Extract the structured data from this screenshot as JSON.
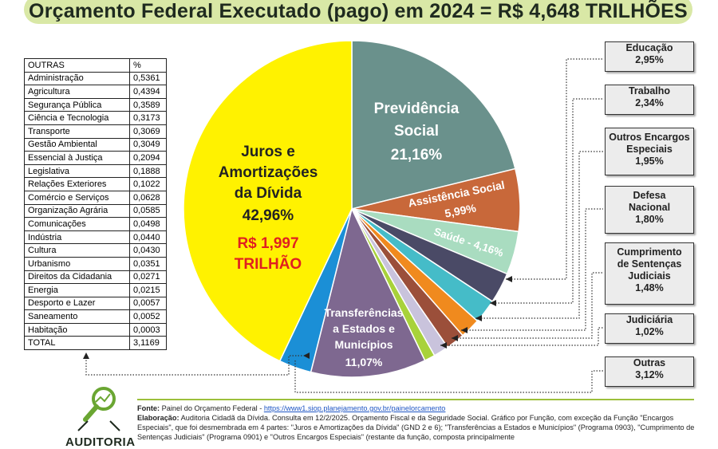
{
  "title": "Orçamento Federal Executado (pago) em 2024 = R$ 4,648 TRILHÕES",
  "table": {
    "header_name": "OUTRAS",
    "header_value": "%",
    "rows": [
      {
        "name": "Administração",
        "value": "0,5361"
      },
      {
        "name": "Agricultura",
        "value": "0,4394"
      },
      {
        "name": "Segurança Pública",
        "value": "0,3589"
      },
      {
        "name": "Ciência e Tecnologia",
        "value": "0,3173"
      },
      {
        "name": "Transporte",
        "value": "0,3069"
      },
      {
        "name": "Gestão Ambiental",
        "value": "0,3049"
      },
      {
        "name": "Essencial à Justiça",
        "value": "0,2094"
      },
      {
        "name": "Legislativa",
        "value": "0,1888"
      },
      {
        "name": "Relações Exteriores",
        "value": "0,1022"
      },
      {
        "name": "Comércio e Serviços",
        "value": "0,0628"
      },
      {
        "name": "Organização Agrária",
        "value": "0,0585"
      },
      {
        "name": "Comunicações",
        "value": "0,0498"
      },
      {
        "name": "Indústria",
        "value": "0,0440"
      },
      {
        "name": "Cultura",
        "value": "0,0430"
      },
      {
        "name": "Urbanismo",
        "value": "0,0351"
      },
      {
        "name": "Direitos da Cidadania",
        "value": "0,0271"
      },
      {
        "name": "Energia",
        "value": "0,0215"
      },
      {
        "name": "Desporto e Lazer",
        "value": "0,0057"
      },
      {
        "name": "Saneamento",
        "value": "0,0052"
      },
      {
        "name": "Habitação",
        "value": "0,0003"
      }
    ],
    "total_name": "TOTAL",
    "total_value": "3,1169"
  },
  "labels": {
    "juros_1": "Juros e",
    "juros_2": "Amortizações",
    "juros_3": "da Dívida",
    "juros_pct": "42,96%",
    "juros_value_1": "R$ 1,997",
    "juros_value_2": "TRILHÃO",
    "prev_1": "Previdência",
    "prev_2": "Social",
    "prev_pct": "21,16%",
    "assist_1": "Assistência Social",
    "assist_pct": "5,99%",
    "saude": "Saúde - 4,16%",
    "transf_1": "Transferências",
    "transf_2": "a Estados e",
    "transf_3": "Municípios",
    "transf_pct": "11,07%"
  },
  "callouts": {
    "educacao": {
      "name": "Educação",
      "pct": "2,95%"
    },
    "trabalho": {
      "name": "Trabalho",
      "pct": "2,34%"
    },
    "encargos": {
      "name_1": "Outros Encargos",
      "name_2": "Especiais",
      "pct": "1,95%"
    },
    "defesa": {
      "name_1": "Defesa",
      "name_2": "Nacional",
      "pct": "1,80%"
    },
    "sentencas": {
      "name_1": "Cumprimento",
      "name_2": "de Sentenças",
      "name_3": "Judiciais",
      "pct": "1,48%"
    },
    "judiciaria": {
      "name": "Judiciária",
      "pct": "1,02%"
    },
    "outras": {
      "name": "Outras",
      "pct": "3,12%"
    }
  },
  "chart_data": {
    "type": "pie",
    "title": "Orçamento Federal Executado (pago) em 2024 = R$ 4,648 TRILHÕES",
    "slices": [
      {
        "label": "Previdência Social",
        "value": 21.16,
        "color": "#6a918c"
      },
      {
        "label": "Assistência Social",
        "value": 5.99,
        "color": "#c8683a"
      },
      {
        "label": "Saúde",
        "value": 4.16,
        "color": "#a9dcc0"
      },
      {
        "label": "Educação",
        "value": 2.95,
        "color": "#4a4a66"
      },
      {
        "label": "Trabalho",
        "value": 2.34,
        "color": "#45bcc8"
      },
      {
        "label": "Outros Encargos Especiais",
        "value": 1.95,
        "color": "#f08a1e"
      },
      {
        "label": "Defesa Nacional",
        "value": 1.8,
        "color": "#9b4f3a"
      },
      {
        "label": "Cumprimento de Sentenças Judiciais",
        "value": 1.48,
        "color": "#c9c3dc"
      },
      {
        "label": "Judiciária",
        "value": 1.02,
        "color": "#a8d23a"
      },
      {
        "label": "Transferências a Estados e Municípios",
        "value": 11.07,
        "color": "#7e6890"
      },
      {
        "label": "Outras",
        "value": 3.12,
        "color": "#1b8fd6"
      },
      {
        "label": "Juros e Amortizações da Dívida",
        "value": 42.96,
        "color": "#fff200"
      }
    ]
  },
  "footer": {
    "fonte_label": "Fonte:",
    "fonte_text": " Painel do Orçamento Federal - ",
    "fonte_link": "https://www1.siop.planejamento.gov.br/painelorcamento",
    "elab_label": "Elaboração:",
    "elab_text": " Auditoria Cidadã da Dívida. Consulta em 12/2/2025. Orçamento Fiscal e da Seguridade Social. Gráfico por Função, com exceção da Função \"Encargos Especiais\", que foi desmembrada em 4 partes: \"Juros e Amortizações da Dívida\" (GND 2 e 6); \"Transferências a Estados e Municípios\" (Programa 0903), \"Cumprimento de Sentenças Judiciais\" (Programa 0901) e \"Outros Encargos Especiais\" (restante da função, composta principalmente"
  },
  "logo": {
    "text": "AUDITORIA"
  }
}
